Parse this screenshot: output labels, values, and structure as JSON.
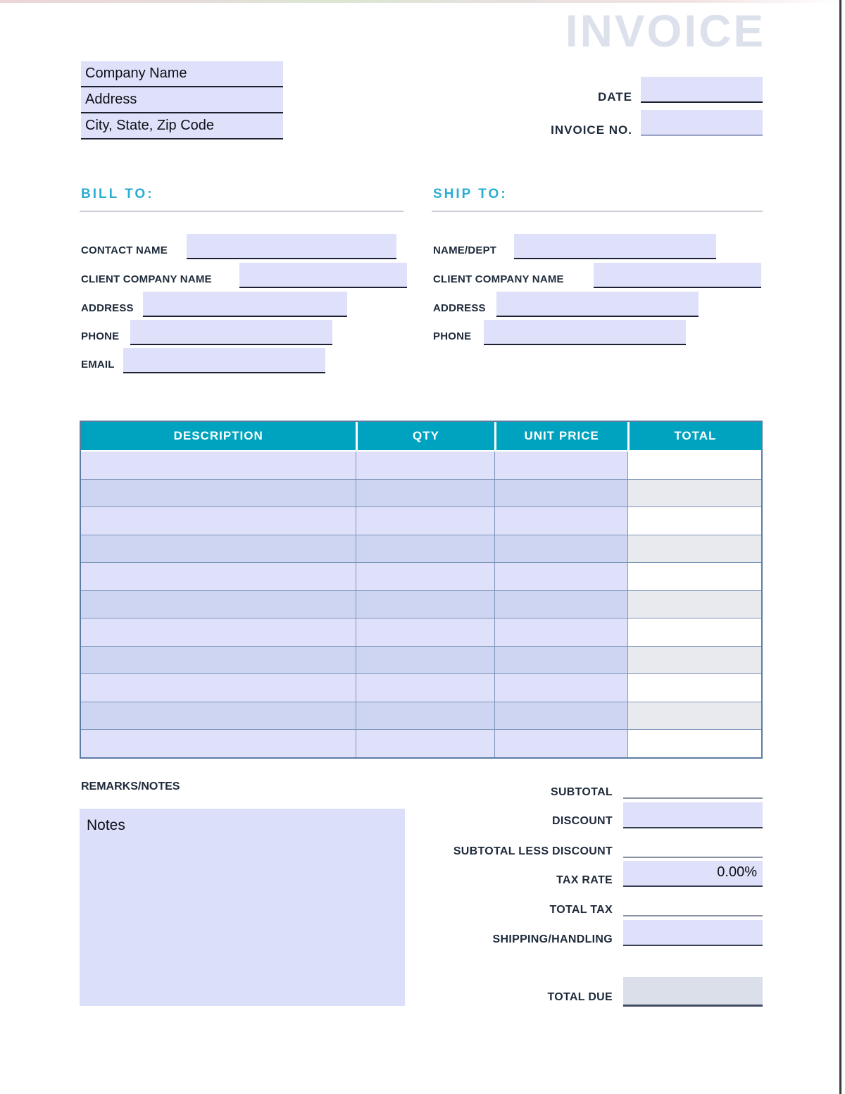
{
  "page": {
    "title": "INVOICE"
  },
  "company": {
    "name": "Company Name",
    "address": "Address",
    "city_state_zip": "City, State, Zip Code"
  },
  "meta": {
    "date_label": "DATE",
    "date_value": "",
    "invoice_no_label": "INVOICE NO.",
    "invoice_no_value": ""
  },
  "bill_to": {
    "heading": "BILL TO:",
    "fields": [
      {
        "label": "CONTACT NAME",
        "value": ""
      },
      {
        "label": "CLIENT COMPANY NAME",
        "value": ""
      },
      {
        "label": "ADDRESS",
        "value": ""
      },
      {
        "label": "PHONE",
        "value": ""
      },
      {
        "label": "EMAIL",
        "value": ""
      }
    ]
  },
  "ship_to": {
    "heading": "SHIP TO:",
    "fields": [
      {
        "label": "NAME/DEPT",
        "value": ""
      },
      {
        "label": "CLIENT COMPANY NAME",
        "value": ""
      },
      {
        "label": "ADDRESS",
        "value": ""
      },
      {
        "label": "PHONE",
        "value": ""
      }
    ]
  },
  "items_table": {
    "headers": [
      "DESCRIPTION",
      "QTY",
      "UNIT PRICE",
      "TOTAL"
    ],
    "rows": [
      [
        "",
        "",
        "",
        ""
      ],
      [
        "",
        "",
        "",
        ""
      ],
      [
        "",
        "",
        "",
        ""
      ],
      [
        "",
        "",
        "",
        ""
      ],
      [
        "",
        "",
        "",
        ""
      ],
      [
        "",
        "",
        "",
        ""
      ],
      [
        "",
        "",
        "",
        ""
      ],
      [
        "",
        "",
        "",
        ""
      ],
      [
        "",
        "",
        "",
        ""
      ],
      [
        "",
        "",
        "",
        ""
      ],
      [
        "",
        "",
        "",
        ""
      ]
    ]
  },
  "remarks": {
    "label": "REMARKS/NOTES",
    "notes_text": "Notes"
  },
  "totals": {
    "rows": [
      {
        "label": "SUBTOTAL",
        "value": "",
        "style": "line"
      },
      {
        "label": "DISCOUNT",
        "value": "",
        "style": "box"
      },
      {
        "label": "SUBTOTAL LESS DISCOUNT",
        "value": "",
        "style": "line"
      },
      {
        "label": "TAX RATE",
        "value": "0.00%",
        "style": "box"
      },
      {
        "label": "TOTAL TAX",
        "value": "",
        "style": "line"
      },
      {
        "label": "SHIPPING/HANDLING",
        "value": "",
        "style": "box"
      },
      {
        "label": "TOTAL DUE",
        "value": "",
        "style": "grey-box"
      }
    ]
  },
  "colors": {
    "accent_teal": "#00a3bf",
    "heading_cyan": "#2badd3",
    "label_navy": "#1e2a3a",
    "field_lavender": "#dee1f9",
    "row_alt_lavender": "#ced5f2",
    "total_alt_grey": "#e8eaed",
    "title_grey": "#dce1ec",
    "total_due_grey": "#dbdfe9"
  }
}
